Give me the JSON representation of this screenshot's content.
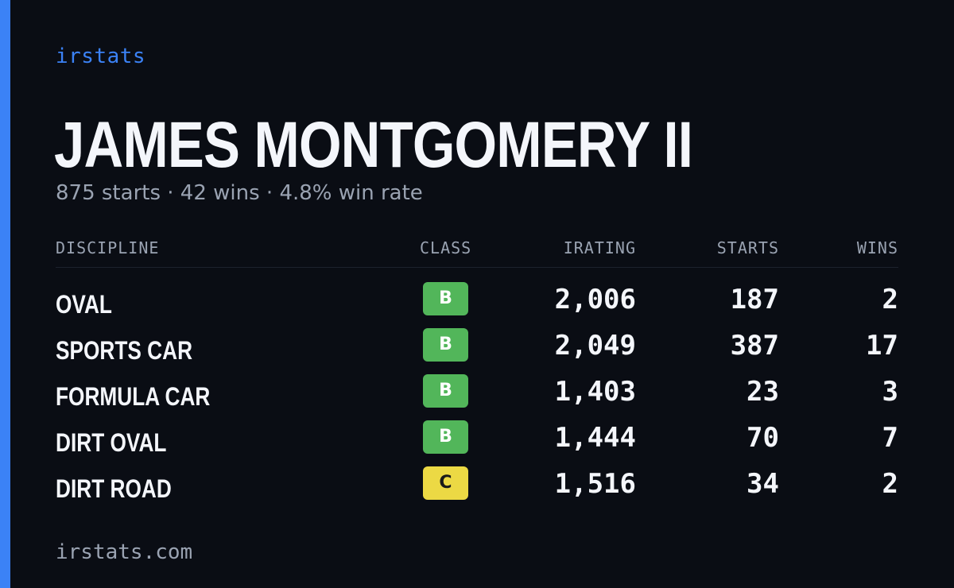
{
  "brand": "irstats",
  "driver": {
    "name": "JAMES MONTGOMERY II",
    "summary": "875 starts · 42 wins · 4.8% win rate"
  },
  "table": {
    "headers": {
      "discipline": "DISCIPLINE",
      "class": "CLASS",
      "irating": "IRATING",
      "starts": "STARTS",
      "wins": "WINS"
    },
    "rows": [
      {
        "discipline": "OVAL",
        "class": "B",
        "class_color": "#52b65a",
        "class_text_color": "#ffffff",
        "irating": "2,006",
        "starts": "187",
        "wins": "2"
      },
      {
        "discipline": "SPORTS CAR",
        "class": "B",
        "class_color": "#52b65a",
        "class_text_color": "#ffffff",
        "irating": "2,049",
        "starts": "387",
        "wins": "17"
      },
      {
        "discipline": "FORMULA CAR",
        "class": "B",
        "class_color": "#52b65a",
        "class_text_color": "#ffffff",
        "irating": "1,403",
        "starts": "23",
        "wins": "3"
      },
      {
        "discipline": "DIRT OVAL",
        "class": "B",
        "class_color": "#52b65a",
        "class_text_color": "#ffffff",
        "irating": "1,444",
        "starts": "70",
        "wins": "7"
      },
      {
        "discipline": "DIRT ROAD",
        "class": "C",
        "class_color": "#ecd944",
        "class_text_color": "#1a1a1a",
        "irating": "1,516",
        "starts": "34",
        "wins": "2"
      }
    ]
  },
  "footer": "irstats.com",
  "colors": {
    "accent": "#3b82f6",
    "background": "#0a0d14",
    "muted_text": "#9aa3b2"
  }
}
